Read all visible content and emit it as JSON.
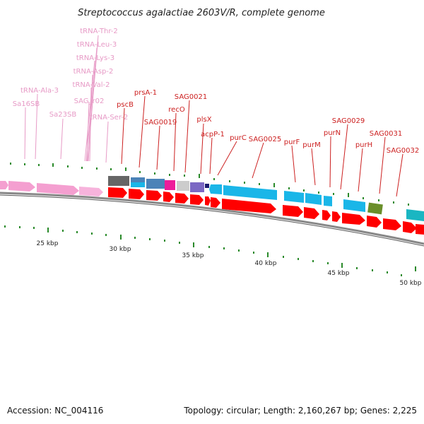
{
  "title": "Streptococcus agalactiae 2603V/R, complete genome",
  "footer": {
    "accession": "Accession: NC_004116",
    "summary": "Topology: circular; Length: 2,160,267 bp; Genes: 2,225"
  },
  "colors": {
    "rna_label": "#e79ac6",
    "gene_label": "#cc1f1f",
    "forward_cds": "#ff0000",
    "reverse_cds": "#1ab6e8",
    "rna_feature": "#f49fd0",
    "backbone": "#888888",
    "tick": "#2a8a2a"
  },
  "scale": {
    "labels": [
      "25 kbp",
      "30 kbp",
      "35 kbp",
      "40 kbp",
      "45 kbp",
      "50 kbp"
    ]
  },
  "rna_labels": [
    "tRNA-Thr-2",
    "tRNA-Leu-3",
    "tRNA-Lys-3",
    "tRNA-Asp-2",
    "tRNA-Ala-3",
    "tRNA-Val-2",
    "Sa16SB",
    "SAG_r02",
    "Sa23SB",
    "tRNA-Ser-2"
  ],
  "gene_labels": [
    "pscB",
    "prsA-1",
    "SAG0019",
    "recO",
    "SAG0021",
    "plsX",
    "acpP-1",
    "purC",
    "SAG0025",
    "purF",
    "purM",
    "purN",
    "SAG0029",
    "purH",
    "SAG0031",
    "SAG0032"
  ]
}
